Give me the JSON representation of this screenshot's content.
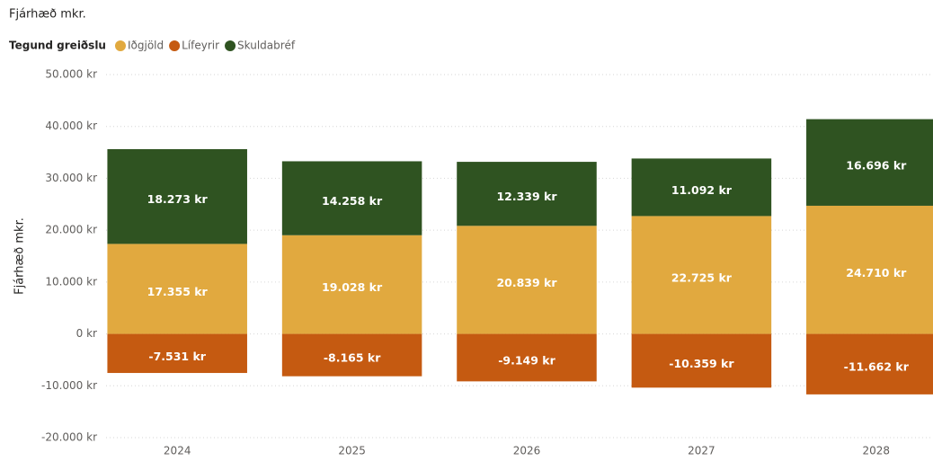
{
  "chart_data": {
    "type": "stacked_bar",
    "title": "Fjárhæð mkr.",
    "y_label": "Fjárhæð mkr.",
    "legend_title": "Tegund greiðslu",
    "categories": [
      "2024",
      "2025",
      "2026",
      "2027",
      "2028"
    ],
    "series": [
      {
        "name": "Iðgjöld",
        "color": "#e1a93f",
        "values": [
          17355,
          19028,
          20839,
          22725,
          24710
        ],
        "value_labels": [
          "17.355 kr",
          "19.028 kr",
          "20.839 kr",
          "22.725 kr",
          "24.710 kr"
        ]
      },
      {
        "name": "Lífeyrir",
        "color": "#c55a11",
        "values": [
          -7531,
          -8165,
          -9149,
          -10359,
          -11662
        ],
        "value_labels": [
          "-7.531 kr",
          "-8.165 kr",
          "-9.149 kr",
          "-10.359 kr",
          "-11.662 kr"
        ]
      },
      {
        "name": "Skuldabréf",
        "color": "#2f5321",
        "values": [
          18273,
          14258,
          12339,
          11092,
          16696
        ],
        "value_labels": [
          "18.273 kr",
          "14.258 kr",
          "12.339 kr",
          "11.092 kr",
          "16.696 kr"
        ]
      }
    ],
    "ylim": [
      -20000,
      50000
    ],
    "yticks": [
      {
        "value": -20000,
        "label": "-20.000 kr"
      },
      {
        "value": -10000,
        "label": "-10.000 kr"
      },
      {
        "value": 0,
        "label": "0 kr"
      },
      {
        "value": 10000,
        "label": "10.000 kr"
      },
      {
        "value": 20000,
        "label": "20.000 kr"
      },
      {
        "value": 30000,
        "label": "30.000 kr"
      },
      {
        "value": 40000,
        "label": "40.000 kr"
      },
      {
        "value": 50000,
        "label": "50.000 kr"
      }
    ],
    "grid": true
  }
}
